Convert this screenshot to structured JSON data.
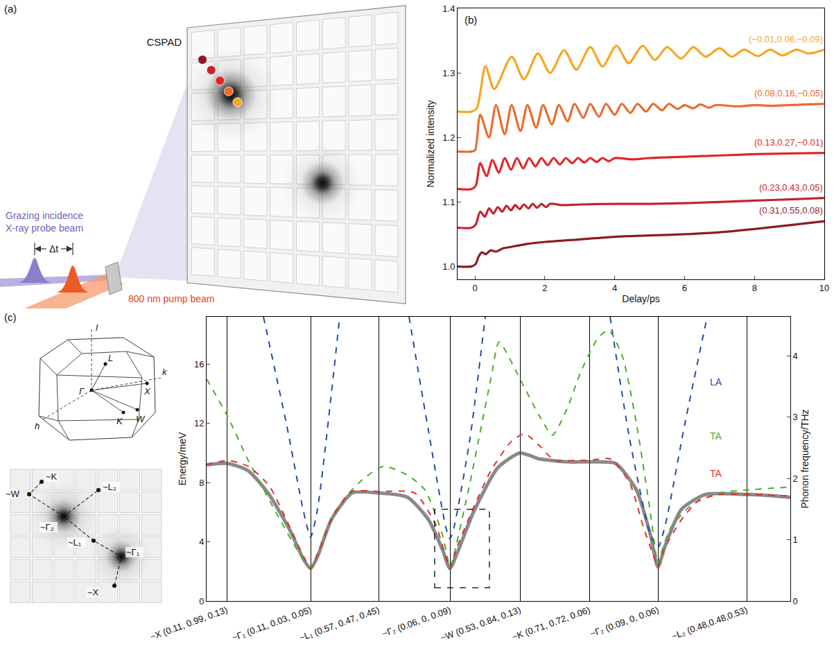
{
  "chart_data": [
    {
      "type": "line",
      "panel_label": "(b)",
      "x_label": "Delay/ps",
      "y_label": "Normalized intensity",
      "xlim": [
        -0.5,
        10
      ],
      "xticks": [
        0,
        2,
        4,
        6,
        8,
        10
      ],
      "ylim": [
        0.98,
        1.4
      ],
      "yticks": [
        {
          "value": 1.0,
          "label": "1.0"
        },
        1.1,
        1.2,
        1.3,
        1.4
      ],
      "series": [
        {
          "name": "(−0.01,0.06,−0.09)",
          "color": "#f5a623",
          "x": [
            -0.5,
            -0.1,
            0.05,
            0.3,
            0.55,
            1.05,
            1.4,
            1.8,
            2.15,
            2.55,
            2.9,
            3.3,
            3.65,
            4.05,
            4.4,
            4.8,
            5.15,
            5.5,
            5.9,
            6.25,
            6.6,
            7.0,
            7.35,
            7.7,
            8.1,
            8.45,
            8.8,
            9.2,
            9.55,
            10
          ],
          "values": [
            1.24,
            1.24,
            1.245,
            1.31,
            1.275,
            1.325,
            1.29,
            1.33,
            1.3,
            1.335,
            1.305,
            1.34,
            1.31,
            1.342,
            1.315,
            1.342,
            1.32,
            1.34,
            1.322,
            1.34,
            1.325,
            1.338,
            1.325,
            1.336,
            1.326,
            1.336,
            1.327,
            1.336,
            1.33,
            1.336
          ]
        },
        {
          "name": "(0.08,0.16,−0.05)",
          "color": "#ec6a2c",
          "x": [
            -0.5,
            -0.1,
            0,
            0.15,
            0.4,
            0.6,
            0.85,
            1.05,
            1.3,
            1.5,
            1.75,
            1.95,
            2.2,
            2.4,
            2.65,
            2.85,
            3.1,
            3.3,
            3.55,
            3.75,
            4.0,
            4.2,
            4.45,
            4.65,
            4.9,
            5.1,
            5.35,
            5.55,
            5.8,
            6.0,
            6.25,
            6.45,
            6.7,
            6.9,
            7.5,
            8,
            8.5,
            9,
            9.5,
            10
          ],
          "values": [
            1.178,
            1.178,
            1.18,
            1.235,
            1.2,
            1.25,
            1.205,
            1.25,
            1.21,
            1.25,
            1.215,
            1.25,
            1.22,
            1.25,
            1.225,
            1.252,
            1.23,
            1.252,
            1.232,
            1.252,
            1.235,
            1.252,
            1.238,
            1.252,
            1.24,
            1.252,
            1.242,
            1.252,
            1.244,
            1.25,
            1.245,
            1.251,
            1.246,
            1.25,
            1.248,
            1.25,
            1.249,
            1.25,
            1.251,
            1.252
          ]
        },
        {
          "name": "(0.13,0.27,−0.01)",
          "color": "#e0262a",
          "x": [
            -0.5,
            -0.1,
            0.02,
            0.15,
            0.33,
            0.5,
            0.68,
            0.85,
            1.03,
            1.2,
            1.38,
            1.55,
            1.73,
            1.9,
            2.08,
            2.25,
            2.43,
            2.6,
            2.78,
            2.95,
            3.13,
            3.3,
            3.48,
            3.65,
            3.83,
            4.0,
            4.5,
            5,
            6,
            7,
            8,
            9,
            10
          ],
          "values": [
            1.12,
            1.12,
            1.125,
            1.16,
            1.14,
            1.165,
            1.145,
            1.168,
            1.15,
            1.168,
            1.152,
            1.168,
            1.155,
            1.168,
            1.157,
            1.168,
            1.158,
            1.168,
            1.16,
            1.168,
            1.161,
            1.168,
            1.162,
            1.168,
            1.163,
            1.168,
            1.166,
            1.168,
            1.17,
            1.172,
            1.174,
            1.175,
            1.176
          ]
        },
        {
          "name": "(0.23,0.43,0.05)",
          "color": "#c5232b",
          "x": [
            -0.5,
            -0.1,
            0.02,
            0.15,
            0.28,
            0.4,
            0.53,
            0.65,
            0.78,
            0.9,
            1.03,
            1.15,
            1.28,
            1.4,
            1.53,
            1.65,
            1.78,
            1.9,
            2.03,
            2.15,
            2.5,
            3,
            4,
            5,
            6,
            7,
            8,
            9,
            10
          ],
          "values": [
            1.06,
            1.06,
            1.065,
            1.085,
            1.077,
            1.09,
            1.082,
            1.092,
            1.085,
            1.094,
            1.087,
            1.095,
            1.089,
            1.096,
            1.09,
            1.097,
            1.091,
            1.097,
            1.092,
            1.097,
            1.095,
            1.096,
            1.097,
            1.097,
            1.098,
            1.1,
            1.102,
            1.104,
            1.106
          ]
        },
        {
          "name": "(0.31,0.55,0.08)",
          "color": "#8e1b21",
          "x": [
            -0.5,
            -0.1,
            0.02,
            0.1,
            0.2,
            0.3,
            0.45,
            0.6,
            0.8,
            1,
            1.5,
            2,
            3,
            4,
            5,
            6,
            7,
            8,
            9,
            10
          ],
          "values": [
            1.0,
            1.0,
            1.004,
            1.015,
            1.022,
            1.019,
            1.025,
            1.023,
            1.028,
            1.03,
            1.035,
            1.038,
            1.042,
            1.046,
            1.048,
            1.05,
            1.053,
            1.058,
            1.064,
            1.07
          ]
        }
      ]
    },
    {
      "type": "line",
      "y_label": "Energy/meV",
      "y2_label": "Phonon frequency/THz",
      "xlim": [
        0,
        842
      ],
      "xticks": [
        {
          "value": 29,
          "label": "~X (0.11, 0.99, 0.13)"
        },
        {
          "value": 150,
          "label": "~Γ₁ (0.11, 0.03, 0.05)"
        },
        {
          "value": 248,
          "label": "~L₁ (0.57, 0.47, 0.45)"
        },
        {
          "value": 351,
          "label": "~Γ₂ (0.06, 0, 0.09)"
        },
        {
          "value": 452,
          "label": "~W (0.53, 0.84, 0.13)"
        },
        {
          "value": 552,
          "label": "~K (0.71, 0.72, 0.06)"
        },
        {
          "value": 651,
          "label": "~Γ₂ (0.09, 0, 0.06)"
        },
        {
          "value": 779,
          "label": "~L₂ (0.48,0.48,0.53)"
        }
      ],
      "ylim": [
        0,
        19.2
      ],
      "yticks": [
        0,
        4,
        8,
        12,
        16
      ],
      "y2lim": [
        0,
        4.64
      ],
      "y2ticks": [
        0,
        1,
        2,
        3,
        4
      ],
      "grid": "x",
      "box": {
        "x": [
          329,
          408
        ],
        "y": [
          0.9,
          6.2
        ]
      },
      "series": [
        {
          "color": "#3c3c3c",
          "line_style": "solid",
          "x": [
            0,
            30,
            60,
            90,
            120,
            140,
            150,
            160,
            180,
            210,
            248,
            290,
            320,
            340,
            351,
            362,
            385,
            420,
            452,
            480,
            520,
            552,
            590,
            620,
            640,
            651,
            662,
            685,
            720,
            779,
            820,
            842
          ],
          "values": [
            9.2,
            9.3,
            8.8,
            7.2,
            4.8,
            2.8,
            2.2,
            3.0,
            5.5,
            7.3,
            7.3,
            7.0,
            5.5,
            3.5,
            2.2,
            3.3,
            6.0,
            9.0,
            10.0,
            9.6,
            9.4,
            9.4,
            9.3,
            7.5,
            4.5,
            2.3,
            3.8,
            6.2,
            7.2,
            7.2,
            7.1,
            7.0
          ]
        },
        {
          "name": "LA",
          "color": "#1f4fa3",
          "line_style": "dashed",
          "x": [
            82,
            115,
            140,
            150,
            160,
            192,
            242,
            292,
            320,
            345,
            351,
            357,
            380,
            402,
            492,
            582,
            610,
            640,
            651,
            662,
            690,
            722
          ],
          "values": [
            19.2,
            12.0,
            6.0,
            4.3,
            6.2,
            19.2,
            null,
            19.2,
            11.5,
            5.0,
            4.2,
            5.0,
            11.0,
            19.2,
            null,
            19.2,
            11.0,
            4.5,
            3.6,
            5.2,
            12.0,
            19.2
          ]
        },
        {
          "name": "TA",
          "color": "#4aae2b",
          "line_style": "dashed",
          "x": [
            0,
            30,
            60,
            100,
            130,
            145,
            150,
            155,
            175,
            200,
            225,
            255,
            290,
            315,
            340,
            348,
            351,
            355,
            380,
            410,
            422,
            452,
            480,
            499,
            520,
            540,
            565,
            580,
            600,
            620,
            640,
            648,
            651,
            656,
            670,
            700,
            740,
            779,
            842
          ],
          "values": [
            15.0,
            12.5,
            9.5,
            6.0,
            3.5,
            2.5,
            2.3,
            2.6,
            5.0,
            7.0,
            8.2,
            9.1,
            8.5,
            7.5,
            4.5,
            2.8,
            2.3,
            2.8,
            8.0,
            15.0,
            17.5,
            15.0,
            12.5,
            11.2,
            13.0,
            15.5,
            17.8,
            18.3,
            16.5,
            12.0,
            6.0,
            3.2,
            2.5,
            3.3,
            5.0,
            6.5,
            7.3,
            7.5,
            7.7
          ]
        },
        {
          "name": "TA",
          "color": "#e2302b",
          "line_style": "dashed",
          "x": [
            0,
            30,
            60,
            90,
            120,
            140,
            150,
            160,
            185,
            210,
            248,
            300,
            330,
            345,
            351,
            360,
            385,
            410,
            440,
            459,
            480,
            502,
            530,
            552,
            582,
            610,
            630,
            645,
            651,
            660,
            685,
            710,
            740,
            779,
            842
          ],
          "values": [
            9.2,
            9.5,
            9.1,
            7.8,
            5.0,
            3.0,
            2.2,
            3.2,
            6.0,
            7.4,
            7.4,
            7.3,
            5.2,
            3.0,
            2.2,
            3.5,
            6.3,
            8.8,
            10.8,
            11.3,
            10.5,
            9.5,
            9.5,
            9.5,
            9.6,
            8.0,
            5.0,
            3.0,
            2.3,
            3.5,
            5.5,
            6.8,
            7.2,
            7.2,
            7.1
          ]
        }
      ]
    }
  ],
  "diagram_a": {
    "label": "(a)",
    "detector": "CSPAD",
    "probe_beam": [
      "Grazing incidence",
      "X-ray probe beam"
    ],
    "delay": "Δt",
    "pump_beam": "800 nm pump beam"
  },
  "diagram_c": {
    "label": "(c)",
    "brillouin_zone": {
      "axes": [
        "l",
        "h",
        "k"
      ],
      "points": [
        "L",
        "Γ",
        "X",
        "K",
        "W"
      ]
    },
    "detector_path": [
      "~K",
      "~W",
      "~L₂",
      "~Γ₂",
      "~L₁",
      "~Γ₁",
      "~X"
    ]
  }
}
